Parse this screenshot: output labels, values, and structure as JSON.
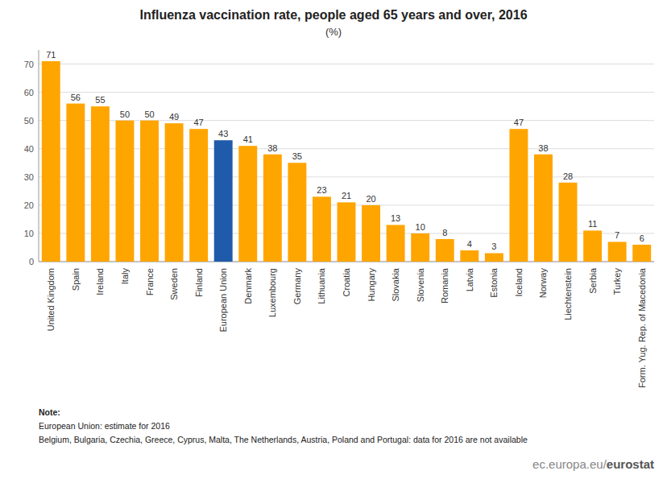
{
  "chart_data": {
    "type": "bar",
    "title": "Influenza vaccination rate, people aged 65 years and over, 2016",
    "subtitle": "(%)",
    "categories": [
      "United Kingdom",
      "Spain",
      "Ireland",
      "Italy",
      "France",
      "Sweden",
      "Finland",
      "European Union",
      "Denmark",
      "Luxembourg",
      "Germany",
      "Lithuania",
      "Croatia",
      "Hungary",
      "Slovakia",
      "Slovenia",
      "Romania",
      "Latvia",
      "Estonia",
      "Iceland",
      "Norway",
      "Liechtenstein",
      "Serbia",
      "Turkey",
      "Form. Yug. Rep. of Macedonia"
    ],
    "values": [
      71,
      56,
      55,
      50,
      50,
      49,
      47,
      43,
      41,
      38,
      35,
      23,
      21,
      20,
      13,
      10,
      8,
      4,
      3,
      47,
      38,
      28,
      11,
      7,
      6
    ],
    "colors": [
      "#FFA500",
      "#FFA500",
      "#FFA500",
      "#FFA500",
      "#FFA500",
      "#FFA500",
      "#FFA500",
      "#1F5BAA",
      "#FFA500",
      "#FFA500",
      "#FFA500",
      "#FFA500",
      "#FFA500",
      "#FFA500",
      "#FFA500",
      "#FFA500",
      "#FFA500",
      "#FFA500",
      "#FFA500",
      "#FFA500",
      "#FFA500",
      "#FFA500",
      "#FFA500",
      "#FFA500",
      "#FFA500"
    ],
    "ylim": [
      0,
      75
    ],
    "yticks": [
      0,
      10,
      20,
      30,
      40,
      50,
      60,
      70
    ],
    "grid": true,
    "data_labels": true,
    "annotations": [
      "Note:",
      "European Union: estimate for 2016",
      "Belgium, Bulgaria, Czechia, Greece, Cyprus, Malta, The Netherlands, Austria, Poland and Portugal: data for 2016 are not available"
    ],
    "watermark": [
      "ec.europa.eu/",
      "eurostat"
    ]
  }
}
